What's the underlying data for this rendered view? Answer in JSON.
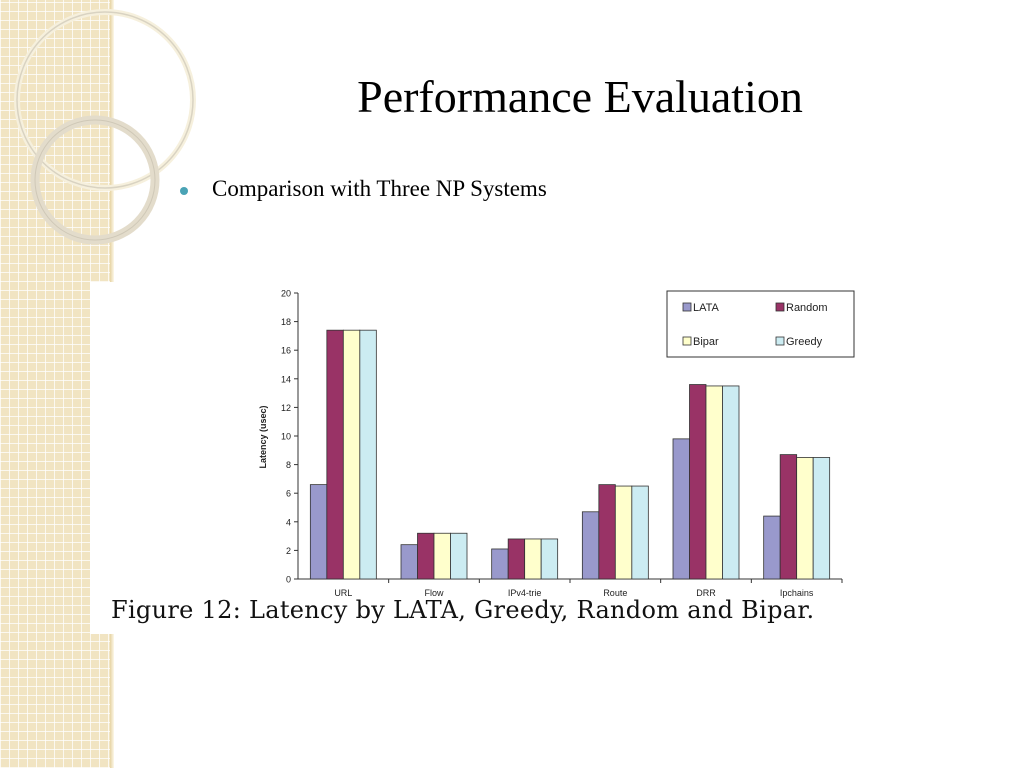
{
  "slide": {
    "title": "Performance Evaluation",
    "bullet": "Comparison with Three NP Systems",
    "caption": "Figure 12:  Latency by LATA, Greedy, Random and Bipar.",
    "accent_color": "#4aa3b5"
  },
  "chart_data": {
    "type": "bar",
    "categories": [
      "URL",
      "Flow",
      "IPv4-trie",
      "Route",
      "DRR",
      "Ipchains"
    ],
    "series": [
      {
        "name": "LATA",
        "color": "#9999cc",
        "values": [
          6.6,
          2.4,
          2.1,
          4.7,
          9.8,
          4.4
        ]
      },
      {
        "name": "Random",
        "color": "#993366",
        "values": [
          17.4,
          3.2,
          2.8,
          6.6,
          13.6,
          8.7
        ]
      },
      {
        "name": "Bipar",
        "color": "#ffffcc",
        "values": [
          17.4,
          3.2,
          2.8,
          6.5,
          13.5,
          8.5
        ]
      },
      {
        "name": "Greedy",
        "color": "#ccecf2",
        "values": [
          17.4,
          3.2,
          2.8,
          6.5,
          13.5,
          8.5
        ]
      }
    ],
    "ylabel": "Latency (usec)",
    "xlabel": "",
    "ylim": [
      0,
      20
    ],
    "yticks": [
      0,
      2,
      4,
      6,
      8,
      10,
      12,
      14,
      16,
      18,
      20
    ],
    "legend_position": "top-right",
    "grid": false
  }
}
